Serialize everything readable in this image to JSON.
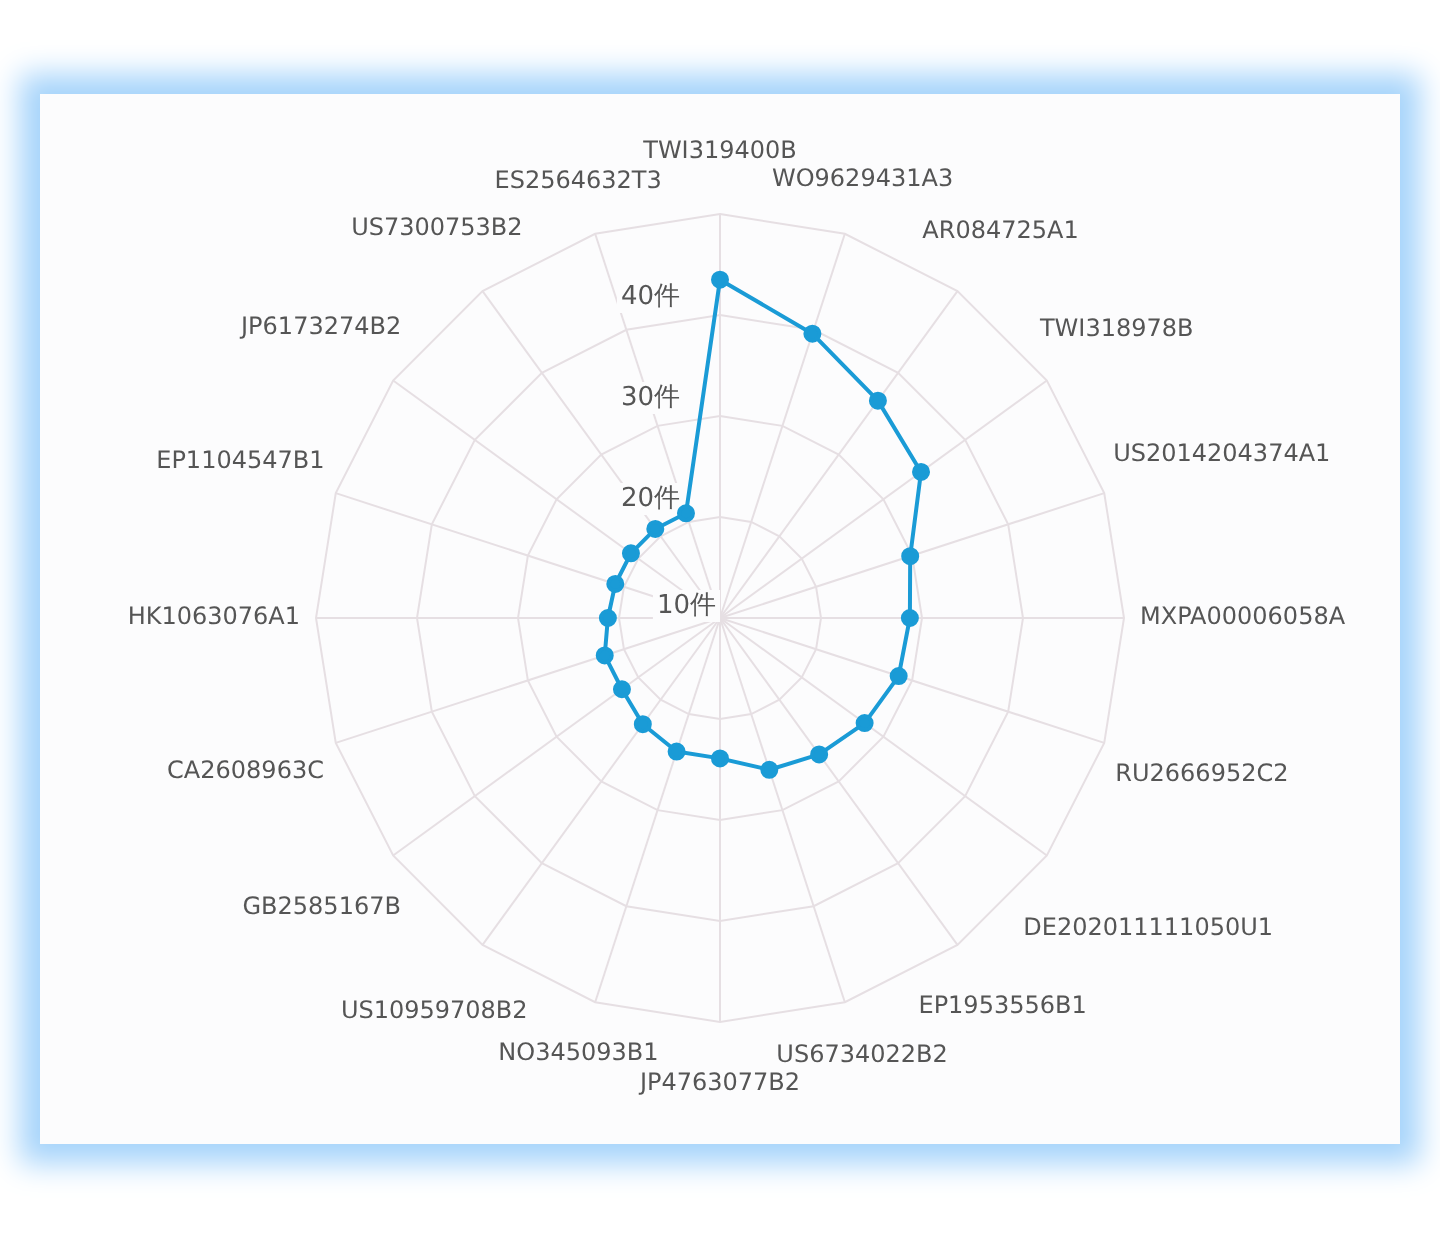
{
  "chart_data": {
    "type": "radar",
    "categories": [
      "TWI319400B",
      "WO9629431A3",
      "AR084725A1",
      "TWI318978B",
      "US2014204374A1",
      "MXPA00006058A",
      "RU2666952C2",
      "DE202011111050U1",
      "EP1953556B1",
      "US6734022B2",
      "JP4763077B2",
      "NO345093B1",
      "US10959708B2",
      "GB2585167B",
      "CA2608963C",
      "HK1063076A1",
      "EP1104547B1",
      "JP6173274B2",
      "US7300753B2",
      "ES2564632T3"
    ],
    "series": [
      {
        "color": "#1a9bd6",
        "values": [
          43.5,
          39.6,
          36.6,
          34.6,
          29.8,
          28.8,
          28.6,
          27.7,
          26.7,
          25.8,
          23.9,
          23.9,
          23.0,
          22.0,
          22.0,
          21.1,
          20.9,
          20.9,
          20.9,
          20.9
        ]
      }
    ],
    "ylim": [
      10,
      50
    ],
    "yticks": [
      {
        "value": 10,
        "label": "10件"
      },
      {
        "value": 20,
        "label": "20件"
      },
      {
        "value": 30,
        "label": "30件"
      },
      {
        "value": 40,
        "label": "40件"
      }
    ],
    "grid": true,
    "marker": "circle",
    "line_style": "solid"
  }
}
